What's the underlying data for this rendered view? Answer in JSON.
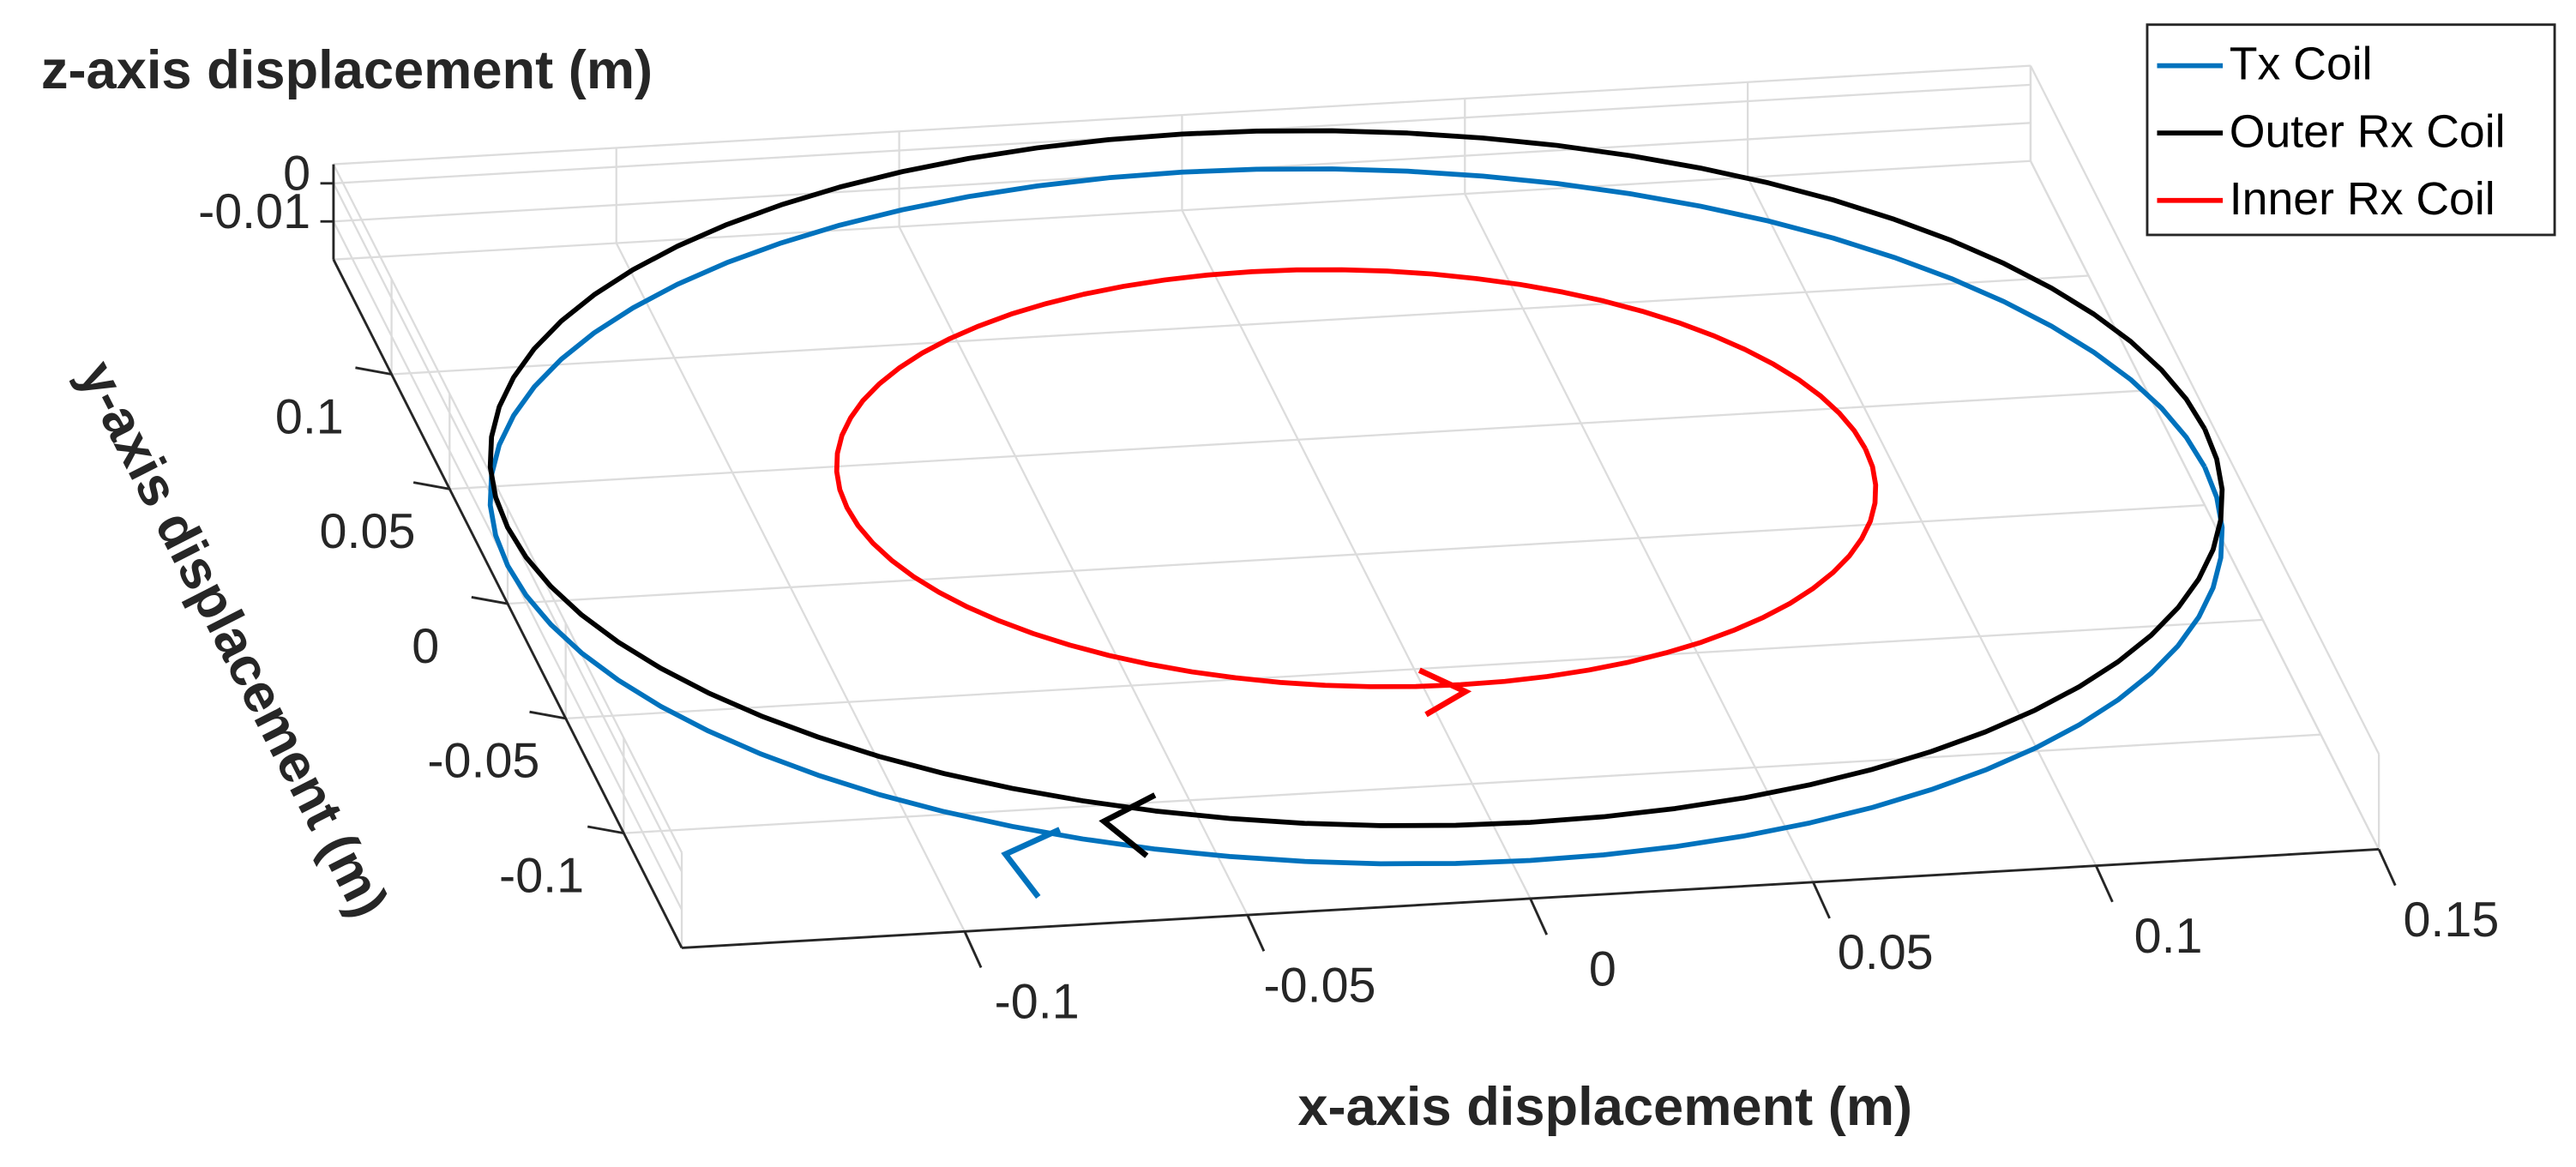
{
  "chart_data": {
    "type": "circle3d",
    "xlabel": "x-axis displacement (m)",
    "ylabel": "y-axis displacement (m)",
    "zlabel": "z-axis displacement (m)",
    "xlim": [
      -0.15,
      0.15
    ],
    "ylim": [
      -0.15,
      0.15
    ],
    "zlim": [
      -0.02,
      0.005
    ],
    "xticks": [
      -0.1,
      -0.05,
      0,
      0.05,
      0.1,
      0.15
    ],
    "yticks": [
      -0.1,
      -0.05,
      0,
      0.05,
      0.1
    ],
    "zticks": [
      -0.01,
      0
    ],
    "grid": true,
    "legend": "upper right",
    "series": [
      {
        "name": "Tx Coil",
        "color": "#0072bd",
        "radius": 0.15,
        "z": -0.01
      },
      {
        "name": "Outer Rx Coil",
        "color": "#000000",
        "radius": 0.15,
        "z": 0
      },
      {
        "name": "Inner Rx Coil",
        "color": "#ff0000",
        "radius": 0.09,
        "z": 0
      }
    ]
  }
}
